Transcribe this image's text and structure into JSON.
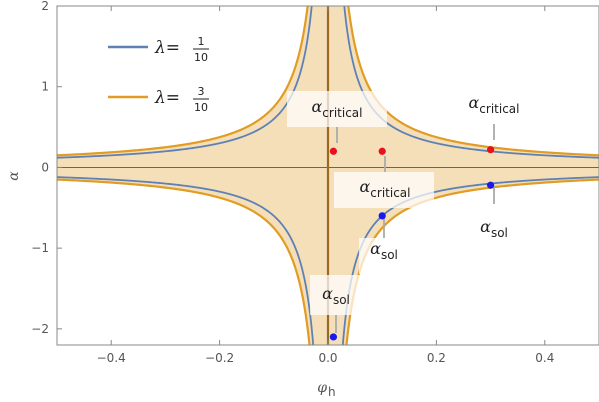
{
  "chart_data": {
    "type": "line",
    "xlabel_symbol": "φ",
    "xlabel_subscript": "h",
    "ylabel": "α",
    "xlim": [
      -0.5,
      0.5
    ],
    "ylim": [
      -2.2,
      2
    ],
    "x_ticks": [
      -0.4,
      -0.2,
      0.0,
      0.2,
      0.4
    ],
    "x_tick_labels": [
      "−0.4",
      "−0.2",
      "0.0",
      "0.2",
      "0.4"
    ],
    "y_ticks": [
      -2,
      -1,
      0,
      1,
      2
    ],
    "y_tick_labels": [
      "−2",
      "−1",
      "0",
      "1",
      "2"
    ],
    "grid": false,
    "legend_position": "top-left",
    "series": [
      {
        "legend_prefix": "λ=",
        "legend_num": "1",
        "legend_den": "10",
        "color": "#5e81b5",
        "k": 0.06
      },
      {
        "legend_prefix": "λ=",
        "legend_num": "3",
        "legend_den": "10",
        "color": "#e19c24",
        "k": 0.075
      }
    ],
    "shaded_region_color": "#e19c24",
    "critical_points": [
      {
        "x": 0.01,
        "y": 0.2
      },
      {
        "x": 0.1,
        "y": 0.2
      },
      {
        "x": 0.3,
        "y": 0.22
      }
    ],
    "solution_points": [
      {
        "x": 0.01,
        "y": -2.1
      },
      {
        "x": 0.1,
        "y": -0.6
      },
      {
        "x": 0.3,
        "y": -0.22
      }
    ],
    "critical_color": "#e8111b",
    "solution_color": "#1a1aee",
    "annotations": [
      {
        "main": "α",
        "sub": "critical"
      },
      {
        "main": "α",
        "sub": "critical"
      },
      {
        "main": "α",
        "sub": "critical"
      },
      {
        "main": "α",
        "sub": "sol"
      },
      {
        "main": "α",
        "sub": "sol"
      },
      {
        "main": "α",
        "sub": "sol"
      }
    ]
  }
}
